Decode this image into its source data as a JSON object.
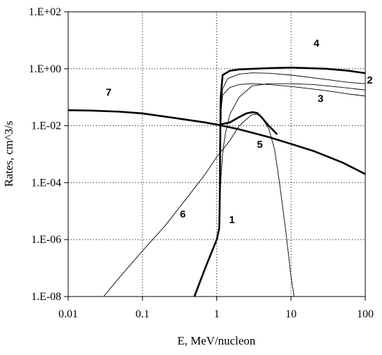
{
  "chart_data": {
    "type": "line",
    "title": "",
    "xlabel": "E, MeV/nucleon",
    "ylabel": "Rates, cm^3/s",
    "xscale": "log",
    "yscale": "log",
    "xlim": [
      0.01,
      100
    ],
    "ylim": [
      1e-08,
      100
    ],
    "grid": "dotted, major decades",
    "legend": "none (curves numbered directly)",
    "x_tick_labels": [
      "0.01",
      "0.1",
      "1",
      "10",
      "100"
    ],
    "y_tick_labels": [
      "1.E-08",
      "1.E-06",
      "1.E-04",
      "1.E-02",
      "1.E+00",
      "1.E+02"
    ],
    "x_tick_values": [
      0.01,
      0.1,
      1,
      10,
      100
    ],
    "y_tick_values": [
      1e-08,
      1e-06,
      0.0001,
      0.01,
      1,
      100
    ],
    "series": [
      {
        "label": "1",
        "style": "thin",
        "points": [
          [
            1.1,
            3e-05
          ],
          [
            1.15,
            0.0002
          ],
          [
            1.2,
            0.001
          ],
          [
            1.3,
            0.005
          ],
          [
            1.5,
            0.025
          ],
          [
            2,
            0.1
          ],
          [
            3,
            0.25
          ],
          [
            5,
            0.3
          ],
          [
            10,
            0.3
          ],
          [
            20,
            0.28
          ],
          [
            50,
            0.22
          ],
          [
            100,
            0.18
          ]
        ]
      },
      {
        "label": "2",
        "style": "thin",
        "points": [
          [
            1.1,
            3e-05
          ],
          [
            1.12,
            0.001
          ],
          [
            1.15,
            0.05
          ],
          [
            1.2,
            0.2
          ],
          [
            1.4,
            0.45
          ],
          [
            2,
            0.65
          ],
          [
            3,
            0.72
          ],
          [
            5,
            0.7
          ],
          [
            10,
            0.6
          ],
          [
            30,
            0.42
          ],
          [
            60,
            0.33
          ],
          [
            100,
            0.3
          ]
        ]
      },
      {
        "label": "3",
        "style": "thin",
        "points": [
          [
            1.1,
            3e-05
          ],
          [
            1.12,
            0.001
          ],
          [
            1.15,
            0.04
          ],
          [
            1.2,
            0.12
          ],
          [
            1.5,
            0.22
          ],
          [
            2,
            0.28
          ],
          [
            3,
            0.3
          ],
          [
            5,
            0.28
          ],
          [
            10,
            0.24
          ],
          [
            30,
            0.17
          ],
          [
            60,
            0.13
          ],
          [
            100,
            0.11
          ]
        ]
      },
      {
        "label": "4",
        "style": "thick",
        "points": [
          [
            0.5,
            1e-08
          ],
          [
            0.7,
            1e-07
          ],
          [
            1,
            1e-06
          ],
          [
            1.08,
            2.5e-06
          ],
          [
            1.1,
            3e-05
          ],
          [
            1.11,
            0.001
          ],
          [
            1.13,
            0.1
          ],
          [
            1.2,
            0.6
          ],
          [
            1.5,
            0.85
          ],
          [
            2,
            0.95
          ],
          [
            5,
            1.05
          ],
          [
            10,
            1.1
          ],
          [
            30,
            1.0
          ],
          [
            60,
            0.85
          ],
          [
            100,
            0.7
          ]
        ]
      },
      {
        "label": "5",
        "style": "thick",
        "points": [
          [
            1.1,
            0.011
          ],
          [
            1.5,
            0.013
          ],
          [
            2,
            0.02
          ],
          [
            2.5,
            0.027
          ],
          [
            3,
            0.03
          ],
          [
            3.5,
            0.028
          ],
          [
            4,
            0.02
          ],
          [
            5,
            0.01
          ],
          [
            6.5,
            0.005
          ]
        ]
      },
      {
        "label": "6",
        "style": "thin",
        "points": [
          [
            0.03,
            1e-08
          ],
          [
            0.05,
            5e-08
          ],
          [
            0.1,
            4e-07
          ],
          [
            0.2,
            3e-06
          ],
          [
            0.4,
            3e-05
          ],
          [
            0.7,
            0.0002
          ],
          [
            1,
            0.0008
          ],
          [
            1.5,
            0.003
          ],
          [
            2,
            0.01
          ],
          [
            3,
            0.025
          ],
          [
            3.5,
            0.025
          ],
          [
            4,
            0.02
          ],
          [
            5,
            0.008
          ],
          [
            6,
            0.0015
          ],
          [
            7,
            0.0001
          ],
          [
            8.5,
            2e-06
          ],
          [
            10,
            5e-08
          ],
          [
            11,
            1e-08
          ]
        ]
      },
      {
        "label": "7",
        "style": "thick",
        "points": [
          [
            0.01,
            0.035
          ],
          [
            0.02,
            0.034
          ],
          [
            0.05,
            0.031
          ],
          [
            0.1,
            0.027
          ],
          [
            0.3,
            0.018
          ],
          [
            0.7,
            0.013
          ],
          [
            1,
            0.011
          ],
          [
            2,
            0.0075
          ],
          [
            5,
            0.004
          ],
          [
            10,
            0.0023
          ],
          [
            20,
            0.0013
          ],
          [
            50,
            0.0005
          ],
          [
            100,
            0.0002
          ]
        ]
      }
    ],
    "curve_label_positions": [
      {
        "label": "1",
        "x": 1.6,
        "y": 5e-06
      },
      {
        "label": "2",
        "x": 115,
        "y": 0.4
      },
      {
        "label": "3",
        "x": 25,
        "y": 0.09
      },
      {
        "label": "4",
        "x": 22,
        "y": 8
      },
      {
        "label": "5",
        "x": 3.8,
        "y": 0.0022
      },
      {
        "label": "6",
        "x": 0.35,
        "y": 8e-06
      },
      {
        "label": "7",
        "x": 0.035,
        "y": 0.15
      }
    ]
  }
}
